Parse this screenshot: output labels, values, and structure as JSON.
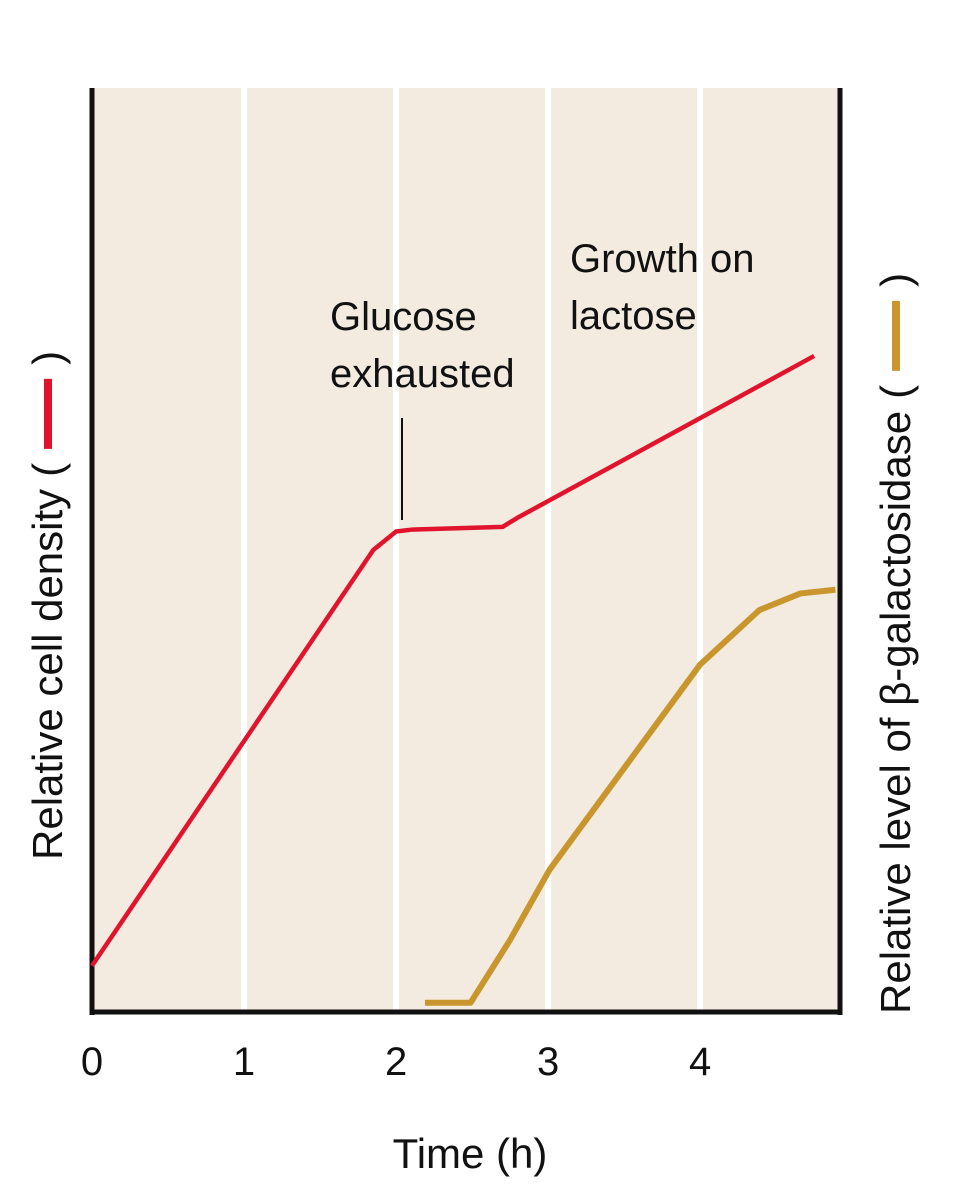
{
  "chart_data": {
    "type": "line",
    "xlabel": "Time (h)",
    "ylabel": "Relative cell density",
    "y2label": "Relative level of β-galactosidase",
    "legend_brackets": [
      "(",
      ")"
    ],
    "annotations": [
      [
        "Glucose",
        "exhausted"
      ],
      [
        "Growth on",
        "lactose"
      ]
    ],
    "xlim": [
      0,
      4.92
    ],
    "xticks": [
      0,
      1,
      2,
      3,
      4
    ],
    "ylim": [
      0,
      10
    ],
    "y2lim": [
      0,
      10
    ],
    "grid": true,
    "series": [
      {
        "name": "Relative cell density",
        "color": "#e0142d",
        "x": [
          0,
          1.85,
          2.0,
          2.1,
          2.7,
          2.8,
          4.75
        ],
        "values": [
          0.5,
          5.0,
          5.2,
          5.22,
          5.25,
          5.35,
          7.1
        ]
      },
      {
        "name": "Relative level of β-galactosidase",
        "color": "#c9962e",
        "axis": "y2",
        "x": [
          2.19,
          2.49,
          2.75,
          3.01,
          4.0,
          4.39,
          4.66,
          4.89
        ],
        "values": [
          0.1,
          0.1,
          0.78,
          1.54,
          3.76,
          4.35,
          4.53,
          4.57
        ]
      }
    ]
  }
}
